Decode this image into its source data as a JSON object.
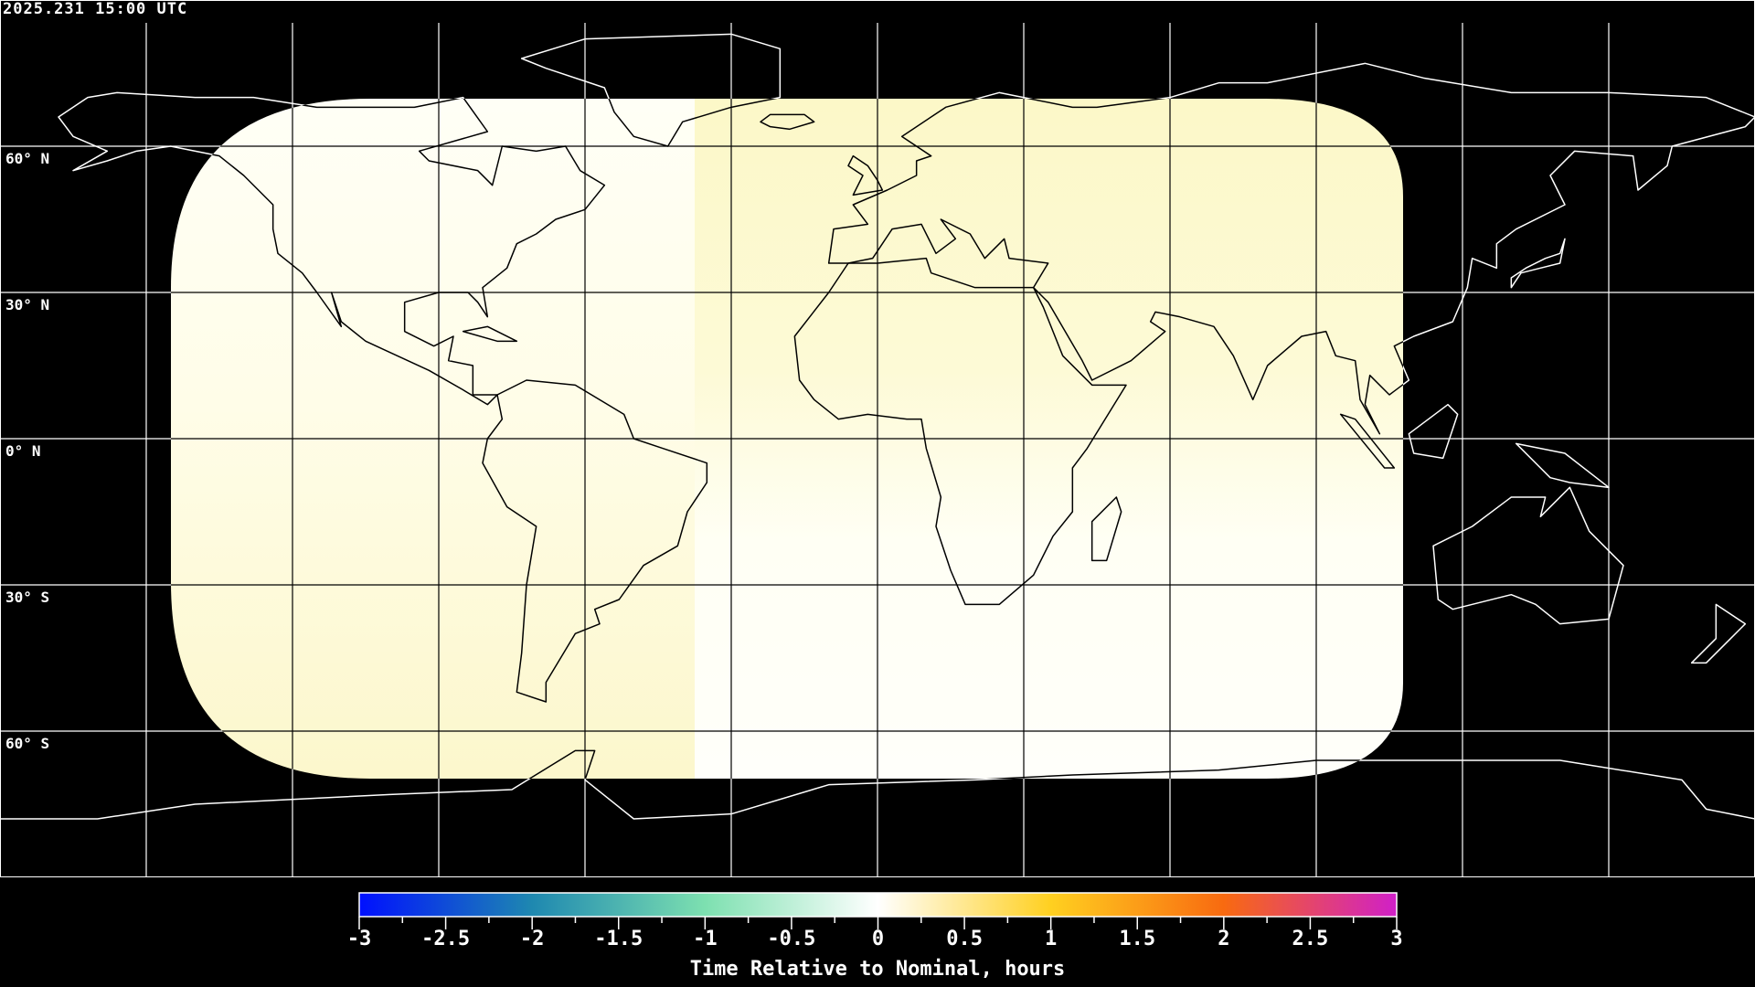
{
  "timestamp": "2025.231 15:00 UTC",
  "lat_labels": [
    "60° N",
    "30° N",
    "0° N",
    "30° S",
    "60° S"
  ],
  "map": {
    "projection": "equirectangular",
    "lon_range": [
      -180,
      180
    ],
    "lat_range": [
      -90,
      90
    ],
    "grid_step_deg": 30,
    "grid_color_outside": "#ffffff",
    "grid_color_inside": "#000000"
  },
  "colorbar": {
    "title": "Time Relative to Nominal, hours",
    "range": [
      -3,
      3
    ],
    "tick_labels": [
      "-3",
      "-2.5",
      "-2",
      "-1.5",
      "-1",
      "-0.5",
      "0",
      "0.5",
      "1",
      "1.5",
      "2",
      "2.5",
      "3"
    ],
    "colors": [
      "#0010ff",
      "#1e88b0",
      "#7de0b0",
      "#ffffff",
      "#ffd020",
      "#f86a10",
      "#d020c8"
    ]
  },
  "data_colors": {
    "near_zero": "#fffff4",
    "slightly_positive": "#fcf8c8"
  }
}
